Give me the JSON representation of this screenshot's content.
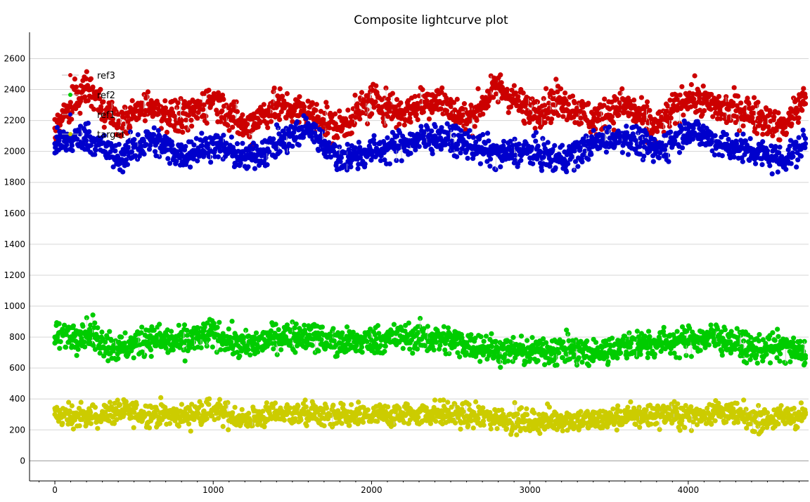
{
  "chart_data": {
    "type": "scatter",
    "title": "Composite lightcurve plot",
    "xlabel": "",
    "ylabel": "",
    "xlim": [
      -160,
      4760
    ],
    "ylim": [
      -130,
      2770
    ],
    "xticks": [
      0,
      1000,
      2000,
      3000,
      4000
    ],
    "yticks": [
      0,
      200,
      400,
      600,
      800,
      1000,
      1200,
      1400,
      1600,
      1800,
      2000,
      2200,
      2400,
      2600
    ],
    "grid": "horizontal",
    "legend": {
      "placement": "top-left",
      "entries": [
        {
          "name": "ref3",
          "color": "#cc0000"
        },
        {
          "name": "ref2",
          "color": "#00cc00"
        },
        {
          "name": "ref1",
          "color": "#0000cc"
        },
        {
          "name": "target",
          "color": "#cccc00"
        }
      ]
    },
    "connector_color": "#c8c8c8",
    "series": [
      {
        "name": "ref3",
        "color": "#cc0000",
        "x": [
          0,
          200,
          400,
          600,
          800,
          1000,
          1200,
          1400,
          1600,
          1800,
          2000,
          2200,
          2400,
          2600,
          2800,
          3000,
          3200,
          3400,
          3600,
          3800,
          4000,
          4200,
          4400,
          4600,
          4740
        ],
        "y": [
          2150,
          2420,
          2180,
          2300,
          2200,
          2350,
          2150,
          2300,
          2250,
          2150,
          2330,
          2250,
          2350,
          2200,
          2420,
          2250,
          2330,
          2200,
          2300,
          2150,
          2360,
          2280,
          2250,
          2150,
          2350
        ]
      },
      {
        "name": "ref2",
        "color": "#00cc00",
        "x": [
          0,
          200,
          400,
          600,
          800,
          1000,
          1200,
          1400,
          1600,
          1800,
          2000,
          2200,
          2400,
          2600,
          2800,
          3000,
          3200,
          3400,
          3600,
          3800,
          4000,
          4200,
          4400,
          4600,
          4740
        ],
        "y": [
          800,
          830,
          720,
          790,
          760,
          820,
          740,
          800,
          810,
          760,
          780,
          800,
          790,
          760,
          720,
          700,
          730,
          690,
          750,
          760,
          780,
          800,
          720,
          740,
          680
        ]
      },
      {
        "name": "ref1",
        "color": "#0000cc",
        "x": [
          0,
          200,
          400,
          600,
          800,
          1000,
          1200,
          1400,
          1600,
          1800,
          2000,
          2200,
          2400,
          2600,
          2800,
          3000,
          3200,
          3400,
          3600,
          3800,
          4000,
          4200,
          4400,
          4600,
          4740
        ],
        "y": [
          2050,
          2100,
          1950,
          2080,
          1980,
          2050,
          1950,
          2050,
          2150,
          1950,
          2000,
          2050,
          2100,
          2050,
          1980,
          2000,
          1950,
          2050,
          2100,
          2000,
          2150,
          2050,
          2000,
          1950,
          2050
        ]
      },
      {
        "name": "target",
        "color": "#cccc00",
        "x": [
          0,
          200,
          400,
          600,
          800,
          1000,
          1200,
          1400,
          1600,
          1800,
          2000,
          2200,
          2400,
          2600,
          2800,
          3000,
          3200,
          3400,
          3600,
          3800,
          4000,
          4200,
          4400,
          4600,
          4740
        ],
        "y": [
          300,
          280,
          320,
          300,
          290,
          330,
          260,
          310,
          300,
          280,
          290,
          300,
          310,
          290,
          280,
          250,
          270,
          260,
          280,
          300,
          290,
          320,
          270,
          280,
          300
        ]
      }
    ]
  }
}
